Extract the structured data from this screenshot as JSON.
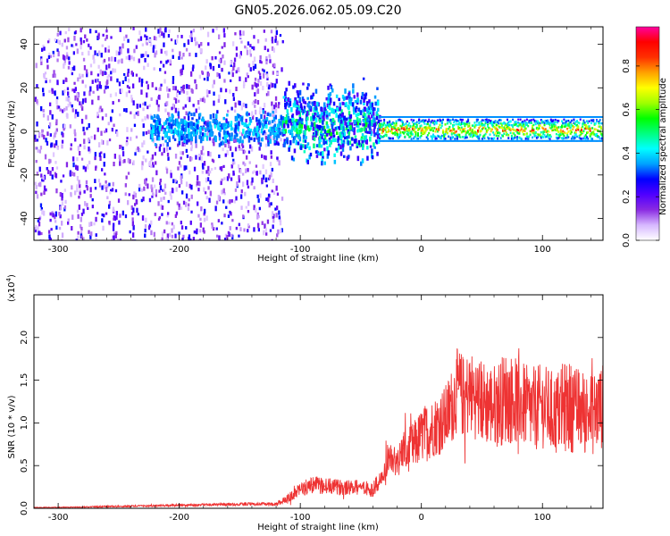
{
  "title": "GN05.2026.062.05.09.C20",
  "chart_data": [
    {
      "type": "heatmap",
      "title": "GN05.2026.062.05.09.C20",
      "xlabel": "Height of straight line (km)",
      "ylabel": "Frequency (Hz)",
      "xlim": [
        -320,
        150
      ],
      "ylim": [
        -50,
        48
      ],
      "xticks": [
        "-300",
        "-200",
        "-100",
        "0",
        "100"
      ],
      "xtick_values": [
        -300,
        -200,
        -100,
        0,
        100
      ],
      "yticks": [
        "-40",
        "-20",
        "0",
        "20",
        "40"
      ],
      "ytick_values": [
        -40,
        -20,
        0,
        20,
        40
      ],
      "description_of_field": [
        {
          "x_range": [
            -320,
            -115
          ],
          "freq_range": [
            -50,
            48
          ],
          "amplitude_level": "low (0.05-0.3)",
          "note": "broadband scattered noise"
        },
        {
          "x_range": [
            -225,
            -115
          ],
          "freq_range": [
            -6,
            10
          ],
          "amplitude_level": "0.3-0.45"
        },
        {
          "x_range": [
            -115,
            -35
          ],
          "freq_range": [
            -15,
            25
          ],
          "amplitude_level": "0.2-0.6"
        },
        {
          "x_range": [
            -35,
            150
          ],
          "freq_range": [
            -3,
            6
          ],
          "amplitude_level": "0.55-0.95",
          "note": "narrow band near 0-2 Hz"
        }
      ],
      "colorbar": {
        "label": "Normalized spectral amplitude",
        "range": [
          0.0,
          0.98
        ],
        "ticks": [
          "0.0",
          "0.2",
          "0.4",
          "0.6",
          "0.8"
        ],
        "tick_values": [
          0.0,
          0.2,
          0.4,
          0.6,
          0.8
        ],
        "colors": [
          "#ffffff",
          "#d7b8ff",
          "#8a2be2",
          "#5000ff",
          "#0000ff",
          "#00a0ff",
          "#00ffff",
          "#00ff80",
          "#00ff00",
          "#a0ff00",
          "#ffff00",
          "#ffa000",
          "#ff3000",
          "#ff0000",
          "#ff00a0"
        ]
      }
    },
    {
      "type": "line",
      "xlabel": "Height of straight line (km)",
      "ylabel": "SNR (10 * v/v)",
      "yscale_label": "(x10",
      "yscale_exponent": "4",
      "xlim": [
        -320,
        150
      ],
      "ylim": [
        0,
        2.5
      ],
      "xticks": [
        "-300",
        "-200",
        "-100",
        "0",
        "100"
      ],
      "xtick_values": [
        -300,
        -200,
        -100,
        0,
        100
      ],
      "yticks": [
        "0.0",
        "0.5",
        "1.0",
        "1.5",
        "2.0"
      ],
      "ytick_values": [
        0.0,
        0.5,
        1.0,
        1.5,
        2.0
      ],
      "color": "#ee3333",
      "series": [
        {
          "name": "SNR",
          "x": [
            -320,
            -300,
            -280,
            -260,
            -240,
            -220,
            -200,
            -180,
            -160,
            -140,
            -120,
            -110,
            -100,
            -90,
            -80,
            -70,
            -60,
            -50,
            -40,
            -30,
            -25,
            -20,
            -15,
            -10,
            -5,
            0,
            5,
            10,
            15,
            20,
            25,
            30,
            35,
            40,
            50,
            60,
            70,
            80,
            90,
            100,
            110,
            120,
            130,
            140,
            150
          ],
          "values": [
            0.01,
            0.01,
            0.015,
            0.02,
            0.025,
            0.03,
            0.035,
            0.04,
            0.045,
            0.05,
            0.05,
            0.12,
            0.22,
            0.28,
            0.26,
            0.25,
            0.24,
            0.25,
            0.22,
            0.4,
            0.6,
            0.5,
            0.7,
            0.65,
            0.75,
            0.85,
            0.9,
            0.95,
            1.0,
            1.05,
            1.2,
            1.4,
            1.3,
            1.35,
            1.25,
            1.2,
            1.3,
            1.25,
            1.15,
            1.2,
            1.1,
            1.2,
            1.15,
            1.1,
            1.2
          ],
          "spread": [
            0.005,
            0.005,
            0.005,
            0.01,
            0.01,
            0.01,
            0.015,
            0.015,
            0.015,
            0.02,
            0.02,
            0.05,
            0.08,
            0.1,
            0.1,
            0.09,
            0.09,
            0.09,
            0.09,
            0.15,
            0.2,
            0.18,
            0.25,
            0.3,
            0.3,
            0.32,
            0.35,
            0.35,
            0.38,
            0.4,
            0.45,
            0.5,
            0.5,
            0.5,
            0.5,
            0.5,
            0.55,
            0.5,
            0.5,
            0.5,
            0.5,
            0.55,
            0.5,
            0.5,
            0.5
          ]
        }
      ]
    }
  ]
}
